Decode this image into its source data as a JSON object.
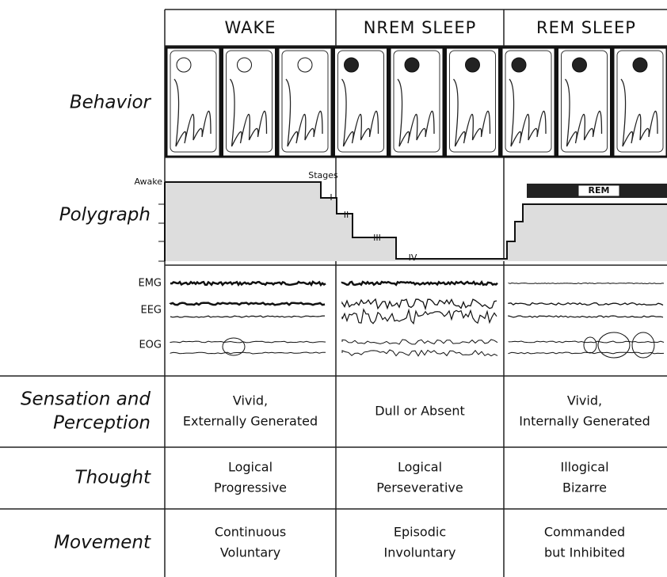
{
  "header": {
    "columns": [
      "WAKE",
      "NREM SLEEP",
      "REM SLEEP"
    ]
  },
  "behavior": {
    "label": "Behavior"
  },
  "polygraph": {
    "label": "Polygraph",
    "awake": "Awake",
    "stages_title": "Stages",
    "stages": [
      "I",
      "II",
      "III",
      "IV"
    ],
    "rem": "REM"
  },
  "traces": [
    "EMG",
    "EEG",
    "EOG"
  ],
  "table": {
    "rows": [
      {
        "label": [
          "Sensation and",
          "Perception"
        ],
        "cells": [
          [
            "Vivid,",
            "Externally Generated"
          ],
          [
            "Dull or Absent"
          ],
          [
            "Vivid,",
            "Internally Generated"
          ]
        ]
      },
      {
        "label": [
          "Thought"
        ],
        "cells": [
          [
            "Logical",
            "Progressive"
          ],
          [
            "Logical",
            "Perseverative"
          ],
          [
            "Illogical",
            "Bizarre"
          ]
        ]
      },
      {
        "label": [
          "Movement"
        ],
        "cells": [
          [
            "Continuous",
            "Voluntary"
          ],
          [
            "Episodic",
            "Involuntary"
          ],
          [
            "Commanded",
            "but Inhibited"
          ]
        ]
      }
    ]
  }
}
